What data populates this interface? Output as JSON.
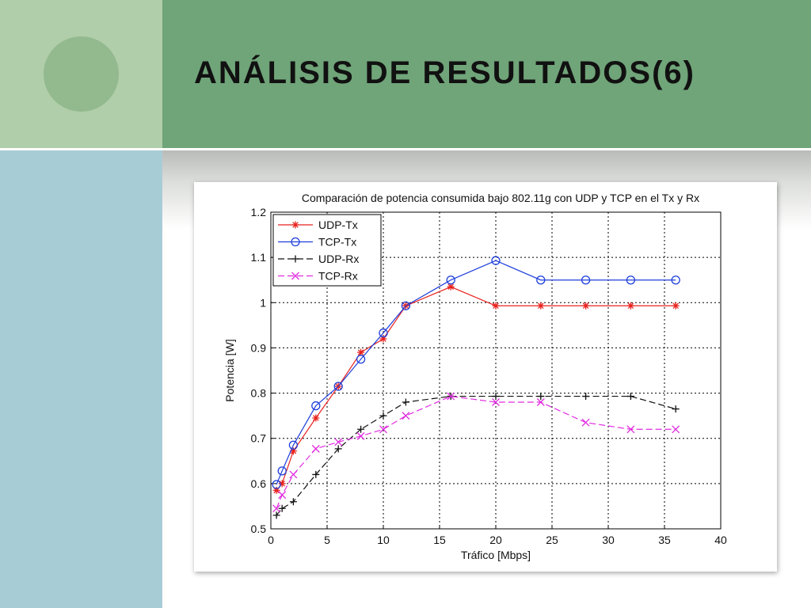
{
  "slide": {
    "title": "ANÁLISIS DE RESULTADOS(6)"
  },
  "colors": {
    "header_green": "#70a479",
    "left_top": "#b0ceaa",
    "left_bottom": "#a8ccd6",
    "circle": "#93b98f"
  },
  "chart_data": {
    "type": "line",
    "title": "Comparación de potencia consumida bajo 802.11g con UDP y TCP en el Tx y Rx",
    "xlabel": "Tráfico [Mbps]",
    "ylabel": "Potencia [W]",
    "xlim": [
      0,
      40
    ],
    "ylim": [
      0.5,
      1.2
    ],
    "xticks": [
      0,
      5,
      10,
      15,
      20,
      25,
      30,
      35,
      40
    ],
    "yticks": [
      0.5,
      0.6,
      0.7,
      0.8,
      0.9,
      1,
      1.1,
      1.2
    ],
    "ytick_labels": [
      "0.5",
      "0.6",
      "0.7",
      "0.8",
      "0.9",
      "1",
      "1.1",
      "1.2"
    ],
    "grid": true,
    "legend_position": "top-left",
    "series": [
      {
        "name": "UDP-Tx",
        "color": "#e8221e",
        "marker": "asterisk",
        "dash": "solid",
        "x": [
          0.5,
          1,
          2,
          4,
          6,
          8,
          10,
          12,
          16,
          20,
          24,
          28,
          32,
          36
        ],
        "y": [
          0.585,
          0.6,
          0.672,
          0.745,
          0.815,
          0.89,
          0.92,
          0.993,
          1.035,
          0.993,
          0.993,
          0.993,
          0.993,
          0.993
        ]
      },
      {
        "name": "TCP-Tx",
        "color": "#1f3fdc",
        "marker": "circle",
        "dash": "solid",
        "x": [
          0.5,
          1,
          2,
          4,
          6,
          8,
          10,
          12,
          16,
          20,
          24,
          28,
          32,
          36
        ],
        "y": [
          0.598,
          0.628,
          0.685,
          0.772,
          0.815,
          0.875,
          0.933,
          0.993,
          1.05,
          1.093,
          1.05,
          1.05,
          1.05,
          1.05
        ]
      },
      {
        "name": "UDP-Rx",
        "color": "#111111",
        "marker": "plus",
        "dash": "dashed",
        "x": [
          0.5,
          1,
          2,
          4,
          6,
          8,
          10,
          12,
          16,
          20,
          24,
          28,
          32,
          36
        ],
        "y": [
          0.53,
          0.545,
          0.56,
          0.62,
          0.677,
          0.72,
          0.75,
          0.78,
          0.793,
          0.793,
          0.793,
          0.793,
          0.793,
          0.765
        ]
      },
      {
        "name": "TCP-Rx",
        "color": "#e02ce0",
        "marker": "cross",
        "dash": "dashed",
        "x": [
          0.5,
          1,
          2,
          4,
          6,
          8,
          10,
          12,
          16,
          20,
          24,
          28,
          32,
          36
        ],
        "y": [
          0.545,
          0.575,
          0.62,
          0.677,
          0.692,
          0.705,
          0.72,
          0.75,
          0.793,
          0.78,
          0.78,
          0.735,
          0.72,
          0.72
        ]
      }
    ]
  }
}
